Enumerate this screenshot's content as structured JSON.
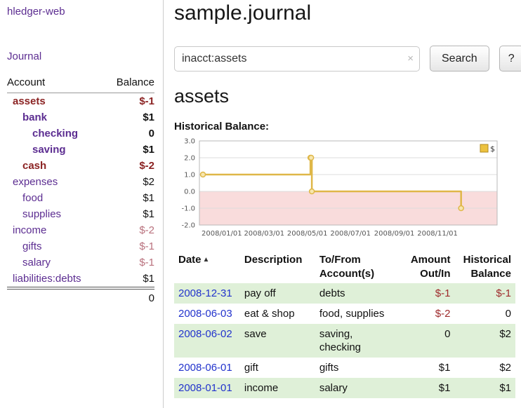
{
  "app": {
    "title": "hledger-web",
    "nav_journal": "Journal"
  },
  "sidebar": {
    "header": {
      "account": "Account",
      "balance": "Balance"
    },
    "accounts": [
      {
        "name": "assets",
        "balance": "$-1"
      },
      {
        "name": "bank",
        "balance": "$1"
      },
      {
        "name": "checking",
        "balance": "0"
      },
      {
        "name": "saving",
        "balance": "$1"
      },
      {
        "name": "cash",
        "balance": "$-2"
      },
      {
        "name": "expenses",
        "balance": "$2"
      },
      {
        "name": "food",
        "balance": "$1"
      },
      {
        "name": "supplies",
        "balance": "$1"
      },
      {
        "name": "income",
        "balance": "$-2"
      },
      {
        "name": "gifts",
        "balance": "$-1"
      },
      {
        "name": "salary",
        "balance": "$-1"
      },
      {
        "name": "liabilities:debts",
        "balance": "$1"
      }
    ],
    "total": "0"
  },
  "main": {
    "title": "sample.journal",
    "search": {
      "value": "inacct:assets",
      "clear_icon": "×",
      "button_label": "Search",
      "help_label": "?"
    },
    "heading": "assets",
    "chart_label": "Historical Balance:"
  },
  "chart_data": {
    "type": "line",
    "title": "Historical Balance",
    "step": true,
    "series": [
      {
        "name": "$",
        "points": [
          {
            "x": "2008-01-01",
            "y": 1
          },
          {
            "x": "2008-06-01",
            "y": 2
          },
          {
            "x": "2008-06-02",
            "y": 2
          },
          {
            "x": "2008-06-03",
            "y": 0
          },
          {
            "x": "2008-12-31",
            "y": -1
          }
        ]
      }
    ],
    "ylim": [
      -2.0,
      3.0
    ],
    "yticks": [
      3.0,
      2.0,
      1.0,
      0.0,
      -1.0,
      -2.0
    ],
    "xticks": [
      "2008/01/01",
      "2008/03/01",
      "2008/05/01",
      "2008/07/01",
      "2008/09/01",
      "2008/11/01"
    ],
    "x_range": [
      "2008-01-01",
      "2009-02-15"
    ],
    "legend": {
      "label": "$",
      "position": "top-right"
    },
    "grid": true,
    "colors": {
      "line": "#dfb748",
      "marker_fill": "#f7e6ae",
      "negative_region": "#f9dcdc",
      "legend_square": "#ecc23f"
    }
  },
  "transactions": {
    "headers": {
      "date": "Date",
      "sort_icon": "▲",
      "description": "Description",
      "account": "To/From\nAccount(s)",
      "amount": "Amount\nOut/In",
      "balance": "Historical\nBalance"
    },
    "rows": [
      {
        "date": "2008-12-31",
        "description": "pay off",
        "account": "debts",
        "amount": "$-1",
        "balance": "$-1"
      },
      {
        "date": "2008-06-03",
        "description": "eat & shop",
        "account": "food, supplies",
        "amount": "$-2",
        "balance": "0"
      },
      {
        "date": "2008-06-02",
        "description": "save",
        "account": "saving,\nchecking",
        "amount": "0",
        "balance": "$2"
      },
      {
        "date": "2008-06-01",
        "description": "gift",
        "account": "gifts",
        "amount": "$1",
        "balance": "$2"
      },
      {
        "date": "2008-01-01",
        "description": "income",
        "account": "salary",
        "amount": "$1",
        "balance": "$1"
      }
    ]
  },
  "colors": {
    "link_purple": "#5c2d91",
    "date_link_blue": "#2233cc",
    "negative_strong": "#8b2323",
    "negative_soft": "#b9717d",
    "row_highlight_green": "#dff0d8"
  }
}
